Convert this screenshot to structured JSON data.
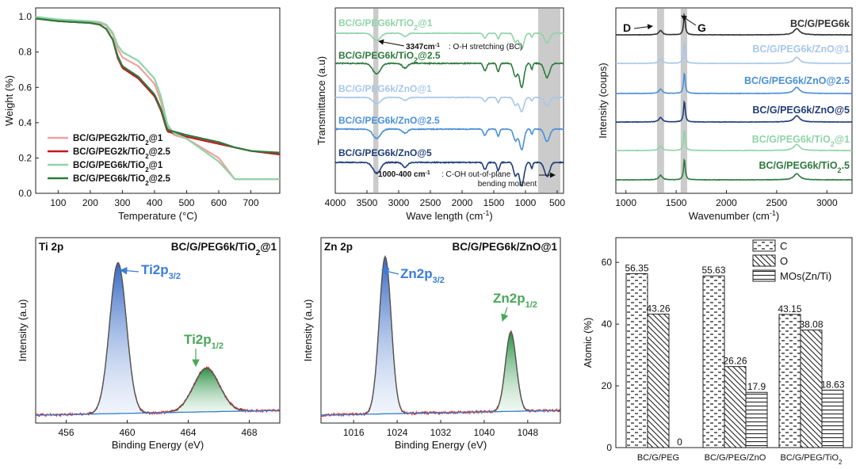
{
  "chart_data": [
    {
      "type": "line",
      "panel": "tga",
      "xlabel": "Temperature (°C)",
      "ylabel": "Weight (%)",
      "xlim": [
        30,
        790
      ],
      "ylim": [
        0.0,
        1.05
      ],
      "xticks": [
        100,
        200,
        300,
        400,
        500,
        600,
        700
      ],
      "yticks": [
        0.0,
        0.2,
        0.4,
        0.6,
        0.8,
        1.0
      ],
      "legend_position": "bottom-left",
      "series": [
        {
          "name": "BC/G/PEG2k/TiO2@1",
          "color": "#f2a0a0",
          "points": [
            [
              30,
              1.0
            ],
            [
              100,
              0.98
            ],
            [
              150,
              0.975
            ],
            [
              200,
              0.97
            ],
            [
              230,
              0.965
            ],
            [
              250,
              0.95
            ],
            [
              270,
              0.9
            ],
            [
              285,
              0.82
            ],
            [
              300,
              0.77
            ],
            [
              350,
              0.72
            ],
            [
              400,
              0.62
            ],
            [
              420,
              0.52
            ],
            [
              440,
              0.38
            ],
            [
              460,
              0.33
            ],
            [
              500,
              0.31
            ],
            [
              600,
              0.2
            ],
            [
              650,
              0.08
            ],
            [
              700,
              0.08
            ],
            [
              790,
              0.08
            ]
          ]
        },
        {
          "name": "BC/G/PEG2k/TiO2@2.5",
          "color": "#c8161d",
          "points": [
            [
              30,
              0.99
            ],
            [
              100,
              0.975
            ],
            [
              150,
              0.97
            ],
            [
              200,
              0.965
            ],
            [
              230,
              0.955
            ],
            [
              250,
              0.93
            ],
            [
              270,
              0.87
            ],
            [
              285,
              0.77
            ],
            [
              300,
              0.71
            ],
            [
              350,
              0.65
            ],
            [
              400,
              0.55
            ],
            [
              420,
              0.47
            ],
            [
              440,
              0.35
            ],
            [
              460,
              0.34
            ],
            [
              500,
              0.32
            ],
            [
              600,
              0.28
            ],
            [
              650,
              0.26
            ],
            [
              700,
              0.24
            ],
            [
              790,
              0.22
            ]
          ]
        },
        {
          "name": "BC/G/PEG6k/TiO2@1",
          "color": "#8fd4a8",
          "points": [
            [
              30,
              1.0
            ],
            [
              100,
              0.985
            ],
            [
              150,
              0.98
            ],
            [
              200,
              0.975
            ],
            [
              230,
              0.97
            ],
            [
              250,
              0.955
            ],
            [
              270,
              0.91
            ],
            [
              285,
              0.84
            ],
            [
              300,
              0.8
            ],
            [
              350,
              0.75
            ],
            [
              400,
              0.65
            ],
            [
              420,
              0.55
            ],
            [
              440,
              0.39
            ],
            [
              460,
              0.34
            ],
            [
              500,
              0.31
            ],
            [
              600,
              0.18
            ],
            [
              650,
              0.08
            ],
            [
              700,
              0.08
            ],
            [
              790,
              0.08
            ]
          ]
        },
        {
          "name": "BC/G/PEG6k/TiO2@2.5",
          "color": "#2d7a3e",
          "points": [
            [
              30,
              0.99
            ],
            [
              100,
              0.975
            ],
            [
              150,
              0.97
            ],
            [
              200,
              0.965
            ],
            [
              230,
              0.955
            ],
            [
              250,
              0.93
            ],
            [
              270,
              0.87
            ],
            [
              285,
              0.78
            ],
            [
              300,
              0.72
            ],
            [
              350,
              0.66
            ],
            [
              400,
              0.56
            ],
            [
              420,
              0.48
            ],
            [
              440,
              0.36
            ],
            [
              460,
              0.35
            ],
            [
              500,
              0.33
            ],
            [
              600,
              0.29
            ],
            [
              650,
              0.26
            ],
            [
              700,
              0.24
            ],
            [
              790,
              0.23
            ]
          ]
        }
      ]
    },
    {
      "type": "line",
      "panel": "ftir",
      "xlabel": "Wave length (cm-1)",
      "ylabel": "Transmittance (a.u)",
      "xlim": [
        4000,
        400
      ],
      "xticks": [
        4000,
        3500,
        3000,
        2500,
        2000,
        1500,
        1000,
        500
      ],
      "series": [
        {
          "name": "BC/G/PEG6k/TiO2@1",
          "color": "#8fd4a8"
        },
        {
          "name": "BC/G/PEG6k/TiO2@2.5",
          "color": "#2d7a3e"
        },
        {
          "name": "BC/G/PEG6k/ZnO@1",
          "color": "#a7c7ea"
        },
        {
          "name": "BC/G/PEG6k/ZnO@2.5",
          "color": "#4a90d9"
        },
        {
          "name": "BC/G/PEG6k/ZnO@5",
          "color": "#1f3e78"
        }
      ],
      "bands": [
        [
          3400,
          3320
        ],
        [
          800,
          450
        ]
      ],
      "annotations": [
        {
          "lead": "3347cm-1",
          "text": ": O-H stretching (BC)"
        },
        {
          "lead": "1000-400 cm-1",
          "text": ": C-OH out-of-plane",
          "line2": "bending moment"
        }
      ]
    },
    {
      "type": "line",
      "panel": "raman",
      "xlabel": "Wavenumber (cm-1)",
      "ylabel": "Intensity (coups)",
      "xlim": [
        900,
        3250
      ],
      "xticks": [
        1000,
        1500,
        2000,
        2500,
        3000
      ],
      "bands": [
        [
          1310,
          1380
        ],
        [
          1545,
          1610
        ]
      ],
      "peak_labels": [
        "D",
        "G"
      ],
      "series": [
        {
          "name": "BC/G/PEG6k",
          "color": "#333333"
        },
        {
          "name": "BC/G/PEG6k/ZnO@1",
          "color": "#a7c7ea"
        },
        {
          "name": "BC/G/PEG6k/ZnO@2.5",
          "color": "#4a90d9"
        },
        {
          "name": "BC/G/PEG6k/ZnO@5",
          "color": "#1f3e78"
        },
        {
          "name": "BC/G/PEG6k/TiO2@1",
          "color": "#8fd4a8"
        },
        {
          "name": "BC/G/PEG6k/TiO2.5",
          "color": "#2d7a3e"
        }
      ]
    },
    {
      "type": "line",
      "panel": "xps-ti",
      "title": "Ti 2p",
      "sample": "BC/G/PEG6k/TiO2@1",
      "xlabel": "Binding Energy (eV)",
      "ylabel": "Intensity (a.u)",
      "xlim": [
        454,
        470
      ],
      "xticks": [
        456,
        460,
        464,
        468
      ],
      "peaks": [
        {
          "label": "Ti2p",
          "sub": "3/2",
          "x": 459.4,
          "color": "#3b7dd8"
        },
        {
          "label": "Ti2p",
          "sub": "1/2",
          "x": 465.2,
          "color": "#49a85a"
        }
      ]
    },
    {
      "type": "line",
      "panel": "xps-zn",
      "title": "Zn 2p",
      "sample": "BC/G/PEG6k/ZnO@1",
      "xlabel": "Binding Energy (eV)",
      "ylabel": "Intensity (a.u)",
      "xlim": [
        1010,
        1054
      ],
      "xticks": [
        1016,
        1024,
        1032,
        1040,
        1048
      ],
      "peaks": [
        {
          "label": "Zn2p",
          "sub": "3/2",
          "x": 1021.8,
          "color": "#3b7dd8"
        },
        {
          "label": "Zn2p",
          "sub": "1/2",
          "x": 1044.9,
          "color": "#49a85a"
        }
      ]
    },
    {
      "type": "bar",
      "panel": "atomic",
      "ylabel": "Atomic (%)",
      "ylim": [
        0,
        68
      ],
      "yticks": [
        0,
        20,
        40,
        60
      ],
      "categories": [
        "BC/G/PEG",
        "BC/G/PEG/ZnO",
        "BC/G/PEG/TiO2"
      ],
      "legend_position": "top-right",
      "series": [
        {
          "name": "C",
          "pattern": "dashes",
          "values": [
            56.35,
            55.63,
            43.15
          ]
        },
        {
          "name": "O",
          "pattern": "diagonal",
          "values": [
            43.26,
            26.26,
            38.08
          ]
        },
        {
          "name": "MOs(Zn/Ti)",
          "pattern": "horizontal",
          "values": [
            0,
            17.9,
            18.63
          ]
        }
      ]
    }
  ]
}
